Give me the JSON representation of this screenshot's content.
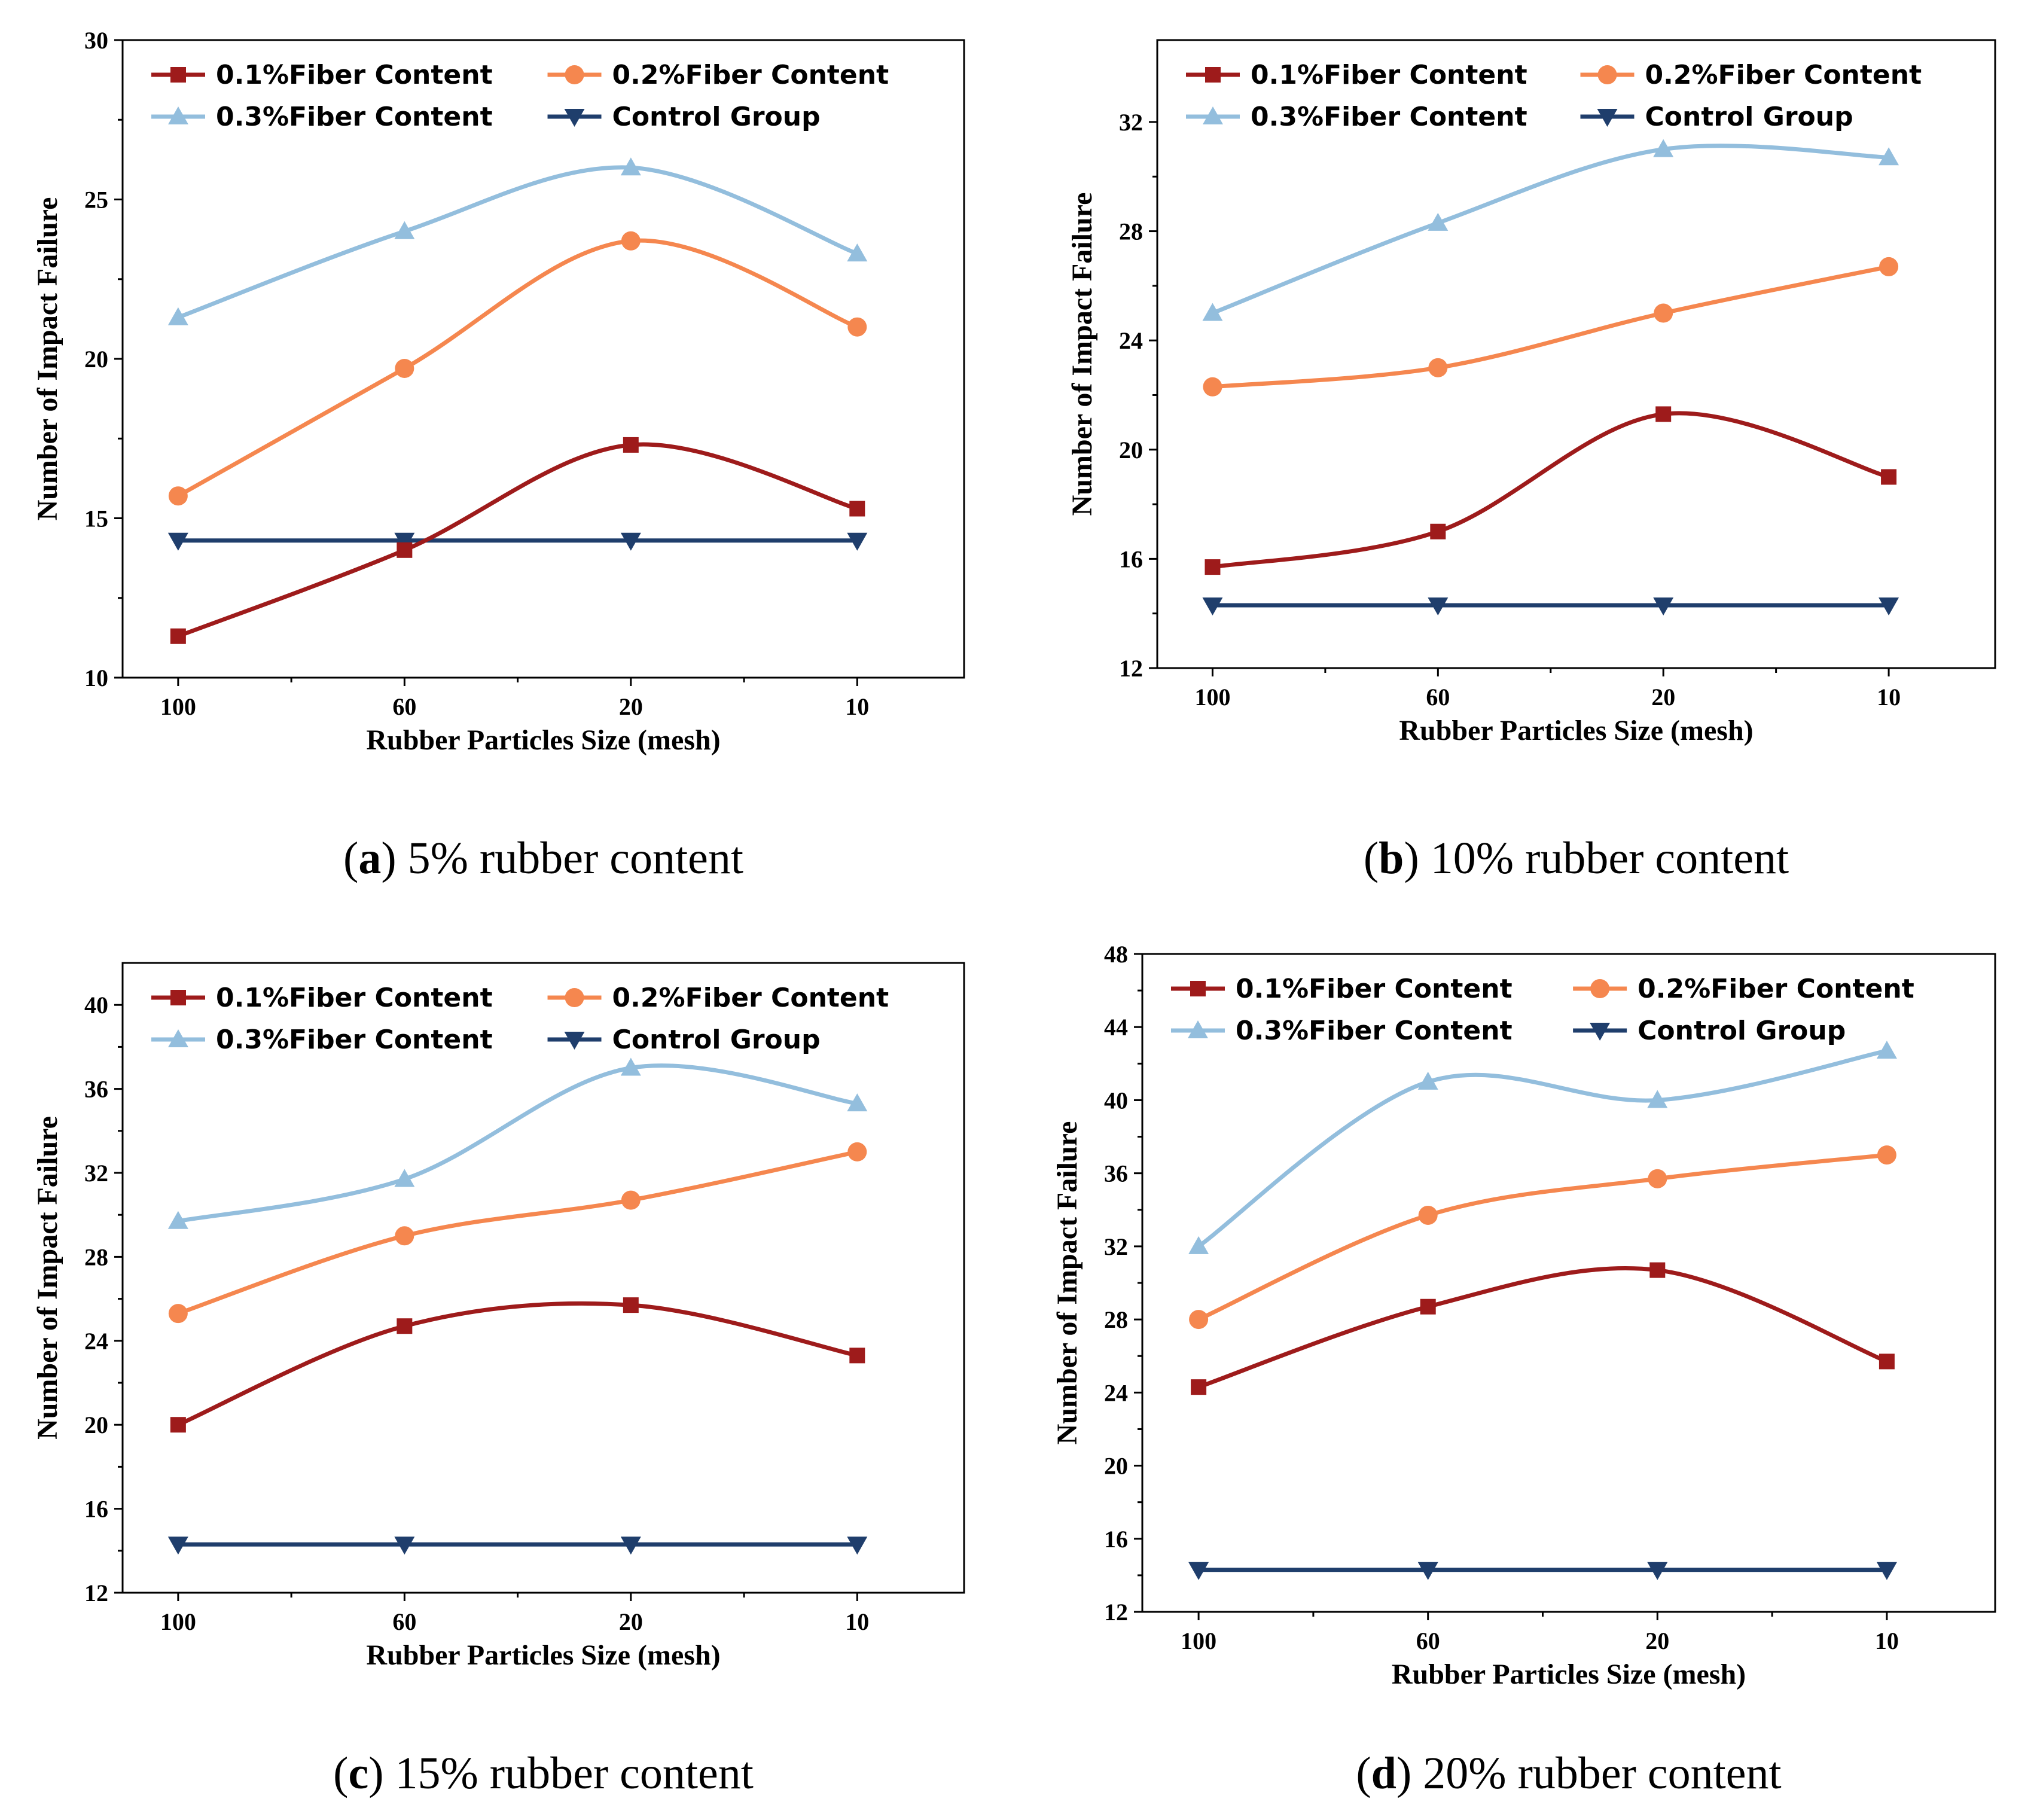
{
  "colors": {
    "fiber_0_1": "#9E1B1B",
    "fiber_0_2": "#F5874F",
    "fiber_0_3": "#93BEDD",
    "control": "#1F3E6C"
  },
  "legend": [
    {
      "key": "fiber_0_1",
      "label": "0.1%Fiber Content",
      "marker": "square"
    },
    {
      "key": "fiber_0_2",
      "label": "0.2%Fiber Content",
      "marker": "circle"
    },
    {
      "key": "fiber_0_3",
      "label": "0.3%Fiber Content",
      "marker": "triangle-up"
    },
    {
      "key": "control",
      "label": "Control Group",
      "marker": "triangle-down"
    }
  ],
  "chart_data": [
    {
      "type": "line",
      "panel": "a",
      "caption_letter": "a",
      "caption_text": " 5% rubber content",
      "xlabel": "Rubber Particles Size (mesh)",
      "ylabel": "Number of Impact Failure",
      "categories": [
        "100",
        "60",
        "20",
        "10"
      ],
      "ylim": [
        10,
        30
      ],
      "yticks": [
        10,
        15,
        20,
        25,
        30
      ],
      "series": [
        {
          "key": "fiber_0_1",
          "name": "0.1%Fiber Content",
          "values": [
            11.3,
            14.0,
            17.3,
            15.3
          ]
        },
        {
          "key": "fiber_0_2",
          "name": "0.2%Fiber Content",
          "values": [
            15.7,
            19.7,
            23.7,
            21.0
          ]
        },
        {
          "key": "fiber_0_3",
          "name": "0.3%Fiber Content",
          "values": [
            21.3,
            24.0,
            26.0,
            23.3
          ]
        },
        {
          "key": "control",
          "name": "Control Group",
          "values": [
            14.3,
            14.3,
            14.3,
            14.3
          ]
        }
      ]
    },
    {
      "type": "line",
      "panel": "b",
      "caption_letter": "b",
      "caption_text": " 10% rubber content",
      "xlabel": "Rubber Particles Size (mesh)",
      "ylabel": "Number of Impact Failure",
      "categories": [
        "100",
        "60",
        "20",
        "10"
      ],
      "ylim": [
        12,
        35
      ],
      "yticks": [
        12,
        16,
        20,
        24,
        28,
        32
      ],
      "series": [
        {
          "key": "fiber_0_1",
          "name": "0.1%Fiber Content",
          "values": [
            15.7,
            17.0,
            21.3,
            19.0
          ]
        },
        {
          "key": "fiber_0_2",
          "name": "0.2%Fiber Content",
          "values": [
            22.3,
            23.0,
            25.0,
            26.7
          ]
        },
        {
          "key": "fiber_0_3",
          "name": "0.3%Fiber Content",
          "values": [
            25.0,
            28.3,
            31.0,
            30.7
          ]
        },
        {
          "key": "control",
          "name": "Control Group",
          "values": [
            14.3,
            14.3,
            14.3,
            14.3
          ]
        }
      ]
    },
    {
      "type": "line",
      "panel": "c",
      "caption_letter": "c",
      "caption_text": " 15% rubber content",
      "xlabel": "Rubber Particles Size (mesh)",
      "ylabel": "Number of Impact Failure",
      "categories": [
        "100",
        "60",
        "20",
        "10"
      ],
      "ylim": [
        12,
        42
      ],
      "yticks": [
        12,
        16,
        20,
        24,
        28,
        32,
        36,
        40
      ],
      "series": [
        {
          "key": "fiber_0_1",
          "name": "0.1%Fiber Content",
          "values": [
            20.0,
            24.7,
            25.7,
            23.3
          ]
        },
        {
          "key": "fiber_0_2",
          "name": "0.2%Fiber Content",
          "values": [
            25.3,
            29.0,
            30.7,
            33.0
          ]
        },
        {
          "key": "fiber_0_3",
          "name": "0.3%Fiber Content",
          "values": [
            29.7,
            31.7,
            37.0,
            35.3
          ]
        },
        {
          "key": "control",
          "name": "Control Group",
          "values": [
            14.3,
            14.3,
            14.3,
            14.3
          ]
        }
      ]
    },
    {
      "type": "line",
      "panel": "d",
      "caption_letter": "d",
      "caption_text": " 20% rubber content",
      "xlabel": "Rubber Particles Size (mesh)",
      "ylabel": "Number of Impact Failure",
      "categories": [
        "100",
        "60",
        "20",
        "10"
      ],
      "ylim": [
        12,
        48
      ],
      "yticks": [
        12,
        16,
        20,
        24,
        28,
        32,
        36,
        40,
        44,
        48
      ],
      "series": [
        {
          "key": "fiber_0_1",
          "name": "0.1%Fiber Content",
          "values": [
            24.3,
            28.7,
            30.7,
            25.7
          ]
        },
        {
          "key": "fiber_0_2",
          "name": "0.2%Fiber Content",
          "values": [
            28.0,
            33.7,
            35.7,
            37.0
          ]
        },
        {
          "key": "fiber_0_3",
          "name": "0.3%Fiber Content",
          "values": [
            32.0,
            41.0,
            40.0,
            42.7
          ]
        },
        {
          "key": "control",
          "name": "Control Group",
          "values": [
            14.3,
            14.3,
            14.3,
            14.3
          ]
        }
      ]
    }
  ]
}
